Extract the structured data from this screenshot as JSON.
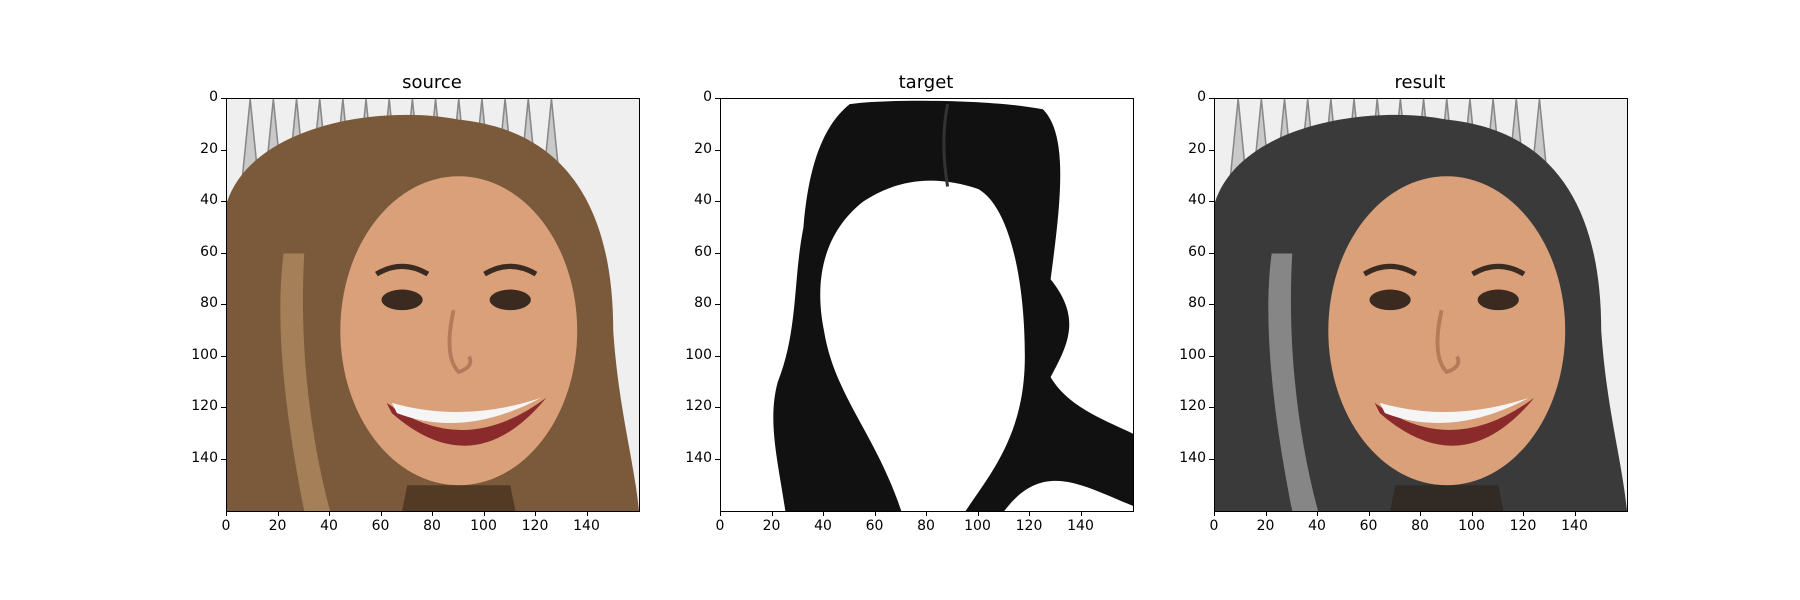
{
  "panels": [
    {
      "id": "source",
      "title": "source",
      "x_ticks": [
        "0",
        "20",
        "40",
        "60",
        "80",
        "100",
        "120",
        "140"
      ],
      "y_ticks": [
        "0",
        "20",
        "40",
        "60",
        "80",
        "100",
        "120",
        "140"
      ],
      "image": "photo of smiling woman with wavy brown hair wearing a silver crown",
      "colors": {
        "background": "#efefef",
        "hair": "#7a5a3a",
        "skin": "#d9a07a"
      }
    },
    {
      "id": "target",
      "title": "target",
      "x_ticks": [
        "0",
        "20",
        "40",
        "60",
        "80",
        "100",
        "120",
        "140"
      ],
      "y_ticks": [
        "0",
        "20",
        "40",
        "60",
        "80",
        "100",
        "120",
        "140"
      ],
      "image": "segmented black hair region on white background",
      "colors": {
        "background": "#ffffff",
        "hair": "#111111"
      }
    },
    {
      "id": "result",
      "title": "result",
      "x_ticks": [
        "0",
        "20",
        "40",
        "60",
        "80",
        "100",
        "120",
        "140"
      ],
      "y_ticks": [
        "0",
        "20",
        "40",
        "60",
        "80",
        "100",
        "120",
        "140"
      ],
      "image": "same woman with hair recolored to dark gray/black",
      "colors": {
        "background": "#efefef",
        "hair": "#3a3a3a",
        "skin": "#d9a07a"
      }
    }
  ]
}
